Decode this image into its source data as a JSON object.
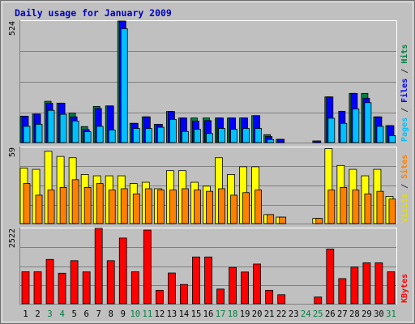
{
  "chart_data": {
    "type": "bar",
    "title": "Daily usage for January 2009",
    "categories": [
      "1",
      "2",
      "3",
      "4",
      "5",
      "6",
      "7",
      "8",
      "9",
      "10",
      "11",
      "12",
      "13",
      "14",
      "15",
      "16",
      "17",
      "18",
      "19",
      "20",
      "21",
      "22",
      "23",
      "24",
      "25",
      "26",
      "27",
      "28",
      "29",
      "30",
      "31"
    ],
    "weekend_days": [
      "3",
      "4",
      "10",
      "11",
      "17",
      "18",
      "24",
      "25",
      "31"
    ],
    "panels": [
      {
        "name": "hits-files-pages",
        "max_label": "524",
        "ylim": [
          0,
          524
        ],
        "legend": [
          {
            "text": "Pages",
            "color": "#00c0ff"
          },
          {
            "text": " / ",
            "color": "#333333"
          },
          {
            "text": "Files",
            "color": "#0000ff"
          },
          {
            "text": " / ",
            "color": "#333333"
          },
          {
            "text": "Hits",
            "color": "#008040"
          }
        ],
        "series": [
          {
            "name": "Hits",
            "color": "#008040",
            "values": [
              114,
              123,
              178,
              170,
              127,
              69,
              156,
              158,
              524,
              83,
              111,
              79,
              134,
              106,
              106,
              106,
              106,
              106,
              106,
              116,
              34,
              14,
              0,
              0,
              7,
              197,
              0,
              212,
              212,
              111,
              73
            ]
          },
          {
            "name": "Files",
            "color": "#0000ff",
            "values": [
              114,
              123,
              170,
              170,
              111,
              56,
              147,
              158,
              524,
              83,
              111,
              79,
              134,
              106,
              93,
              95,
              106,
              106,
              106,
              116,
              26,
              14,
              0,
              0,
              7,
              197,
              135,
              212,
              191,
              111,
              73
            ]
          },
          {
            "name": "Pages",
            "color": "#00c0ff",
            "values": [
              70,
              79,
              139,
              122,
              93,
              47,
              70,
              54,
              491,
              61,
              61,
              66,
              100,
              48,
              57,
              39,
              61,
              57,
              61,
              61,
              13,
              0,
              0,
              0,
              0,
              105,
              83,
              145,
              172,
              70,
              30
            ]
          }
        ]
      },
      {
        "name": "visits-sites",
        "max_label": "59",
        "ylim": [
          0,
          59
        ],
        "legend": [
          {
            "text": "Visits",
            "color": "#e0e000"
          },
          {
            "text": " / ",
            "color": "#333333"
          },
          {
            "text": "Sites",
            "color": "#ff8000"
          }
        ],
        "series": [
          {
            "name": "Visits",
            "color": "#ffff00",
            "values": [
              43,
              42,
              56,
              52,
              51,
              38,
              37,
              37,
              37,
              31,
              32,
              27,
              41,
              41,
              32,
              29,
              51,
              38,
              44,
              44,
              7,
              5,
              0,
              0,
              4,
              58,
              45,
              42,
              37,
              42,
              21
            ]
          },
          {
            "name": "Sites",
            "color": "#ff8000",
            "values": [
              31,
              22,
              26,
              28,
              34,
              28,
              31,
              26,
              27,
              23,
              27,
              26,
              26,
              27,
              26,
              25,
              27,
              22,
              24,
              26,
              7,
              5,
              0,
              0,
              4,
              26,
              28,
              26,
              23,
              25,
              19
            ]
          }
        ]
      },
      {
        "name": "kbytes",
        "max_label": "2522",
        "ylim": [
          0,
          2522
        ],
        "legend": [
          {
            "text": "KBytes",
            "color": "#ff0000"
          }
        ],
        "series": [
          {
            "name": "KBytes",
            "color": "#ff0000",
            "values": [
              1071,
              1071,
              1485,
              1023,
              1443,
              1067,
              2522,
              1443,
              2200,
              1071,
              2467,
              451,
              1030,
              646,
              1567,
              1567,
              492,
              1217,
              1063,
              1330,
              451,
              304,
              0,
              0,
              226,
              1833,
              843,
              1230,
              1372,
              1372,
              1071
            ]
          }
        ]
      }
    ]
  }
}
